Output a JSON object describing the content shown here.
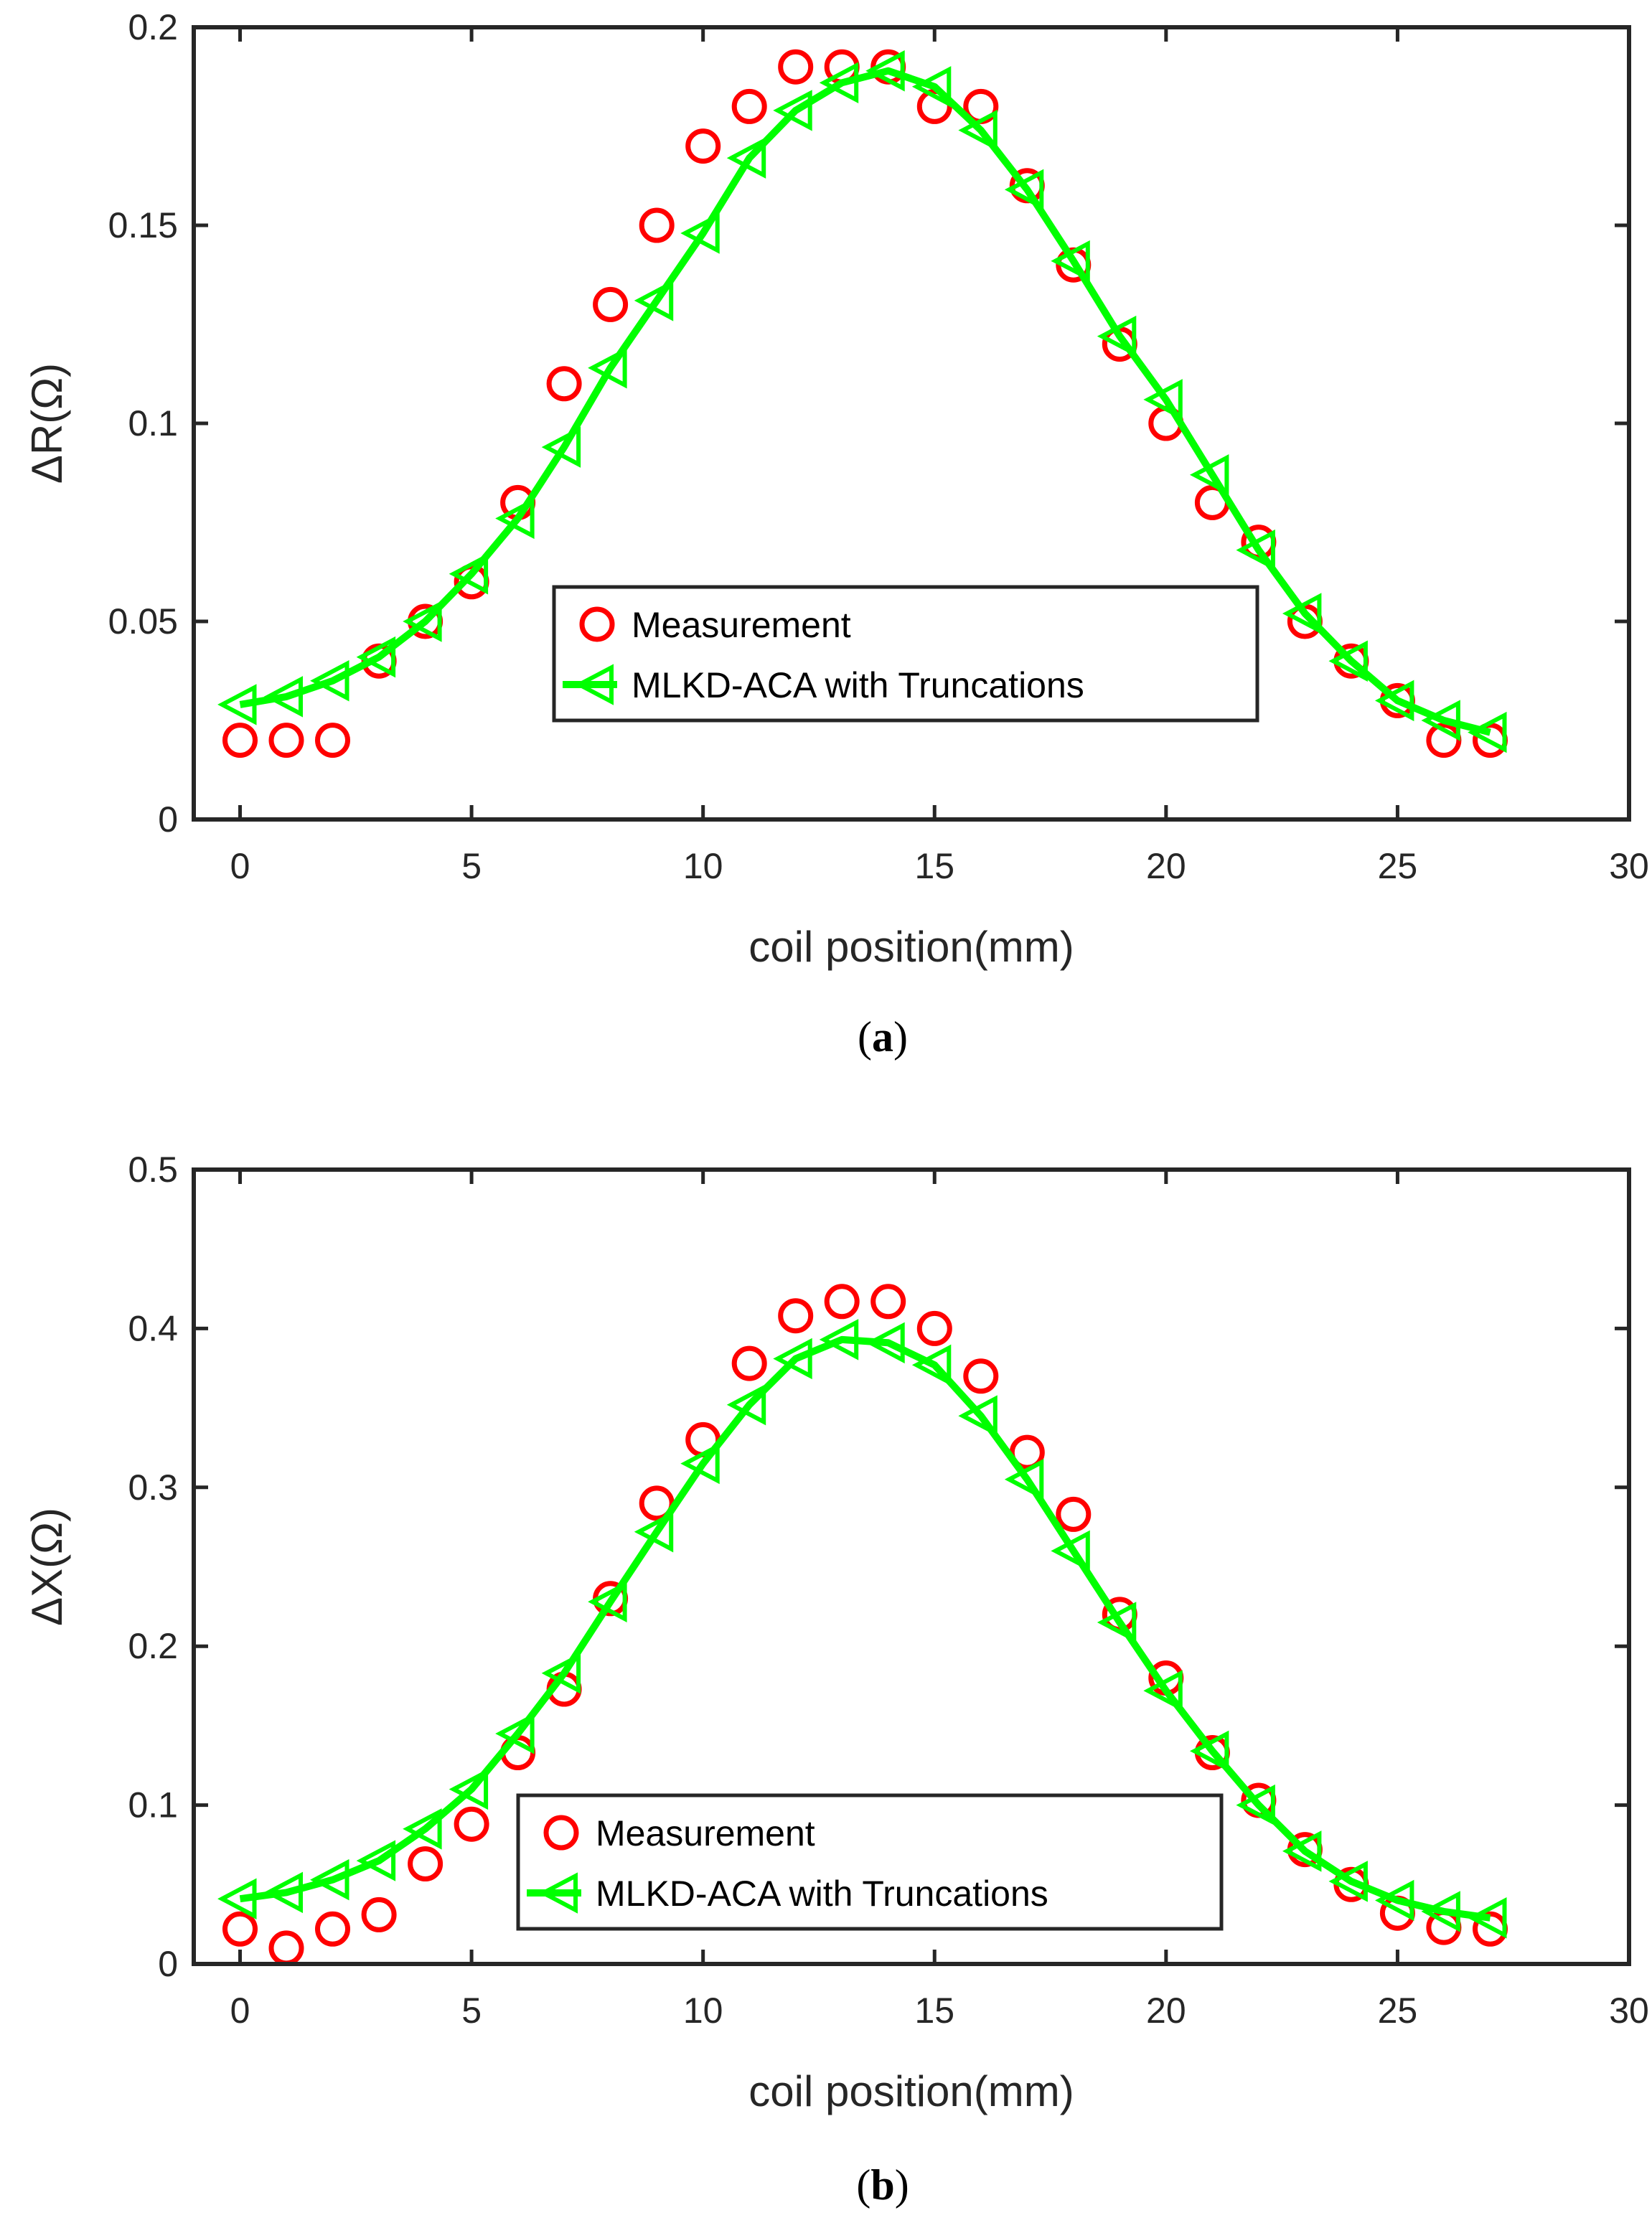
{
  "chart_data": [
    {
      "type": "line",
      "panel": "(a)",
      "panel_letter": "a",
      "xlabel": "coil position(mm)",
      "ylabel": "ΔR(Ω)",
      "xlim": [
        -1,
        30
      ],
      "ylim": [
        0,
        0.2
      ],
      "xticks": [
        0,
        5,
        10,
        15,
        20,
        25,
        30
      ],
      "xtick_labels": [
        "0",
        "5",
        "10",
        "15",
        "20",
        "25",
        "30"
      ],
      "yticks": [
        0,
        0.05,
        0.1,
        0.15,
        0.2
      ],
      "ytick_labels": [
        "0",
        "0.05",
        "0.1",
        "0.15",
        "0.2"
      ],
      "legend_position": "lower-center",
      "series": [
        {
          "name": "Measurement",
          "style": "marker-circle",
          "color": "#ff0000",
          "x": [
            0,
            1,
            2,
            3,
            4,
            5,
            6,
            7,
            8,
            9,
            10,
            11,
            12,
            13,
            14,
            15,
            16,
            17,
            18,
            19,
            20,
            21,
            22,
            23,
            24,
            25,
            26,
            27
          ],
          "values": [
            0.02,
            0.02,
            0.02,
            0.04,
            0.05,
            0.06,
            0.08,
            0.11,
            0.13,
            0.15,
            0.17,
            0.18,
            0.19,
            0.19,
            0.19,
            0.18,
            0.18,
            0.16,
            0.14,
            0.12,
            0.1,
            0.08,
            0.07,
            0.05,
            0.04,
            0.03,
            0.02,
            0.02
          ]
        },
        {
          "name": "MLKD-ACA with Truncations",
          "style": "line-triangle-left",
          "color": "#00ff00",
          "x": [
            0,
            1,
            2,
            3,
            4,
            5,
            6,
            7,
            8,
            9,
            10,
            11,
            12,
            13,
            14,
            15,
            16,
            17,
            18,
            19,
            20,
            21,
            22,
            23,
            24,
            25,
            26,
            27
          ],
          "values": [
            0.029,
            0.031,
            0.035,
            0.041,
            0.05,
            0.062,
            0.076,
            0.094,
            0.114,
            0.131,
            0.148,
            0.167,
            0.179,
            0.186,
            0.189,
            0.185,
            0.174,
            0.159,
            0.141,
            0.122,
            0.106,
            0.087,
            0.068,
            0.052,
            0.04,
            0.03,
            0.025,
            0.022
          ]
        }
      ]
    },
    {
      "type": "line",
      "panel": "(b)",
      "panel_letter": "b",
      "xlabel": "coil position(mm)",
      "ylabel": "ΔX(Ω)",
      "xlim": [
        -1,
        30
      ],
      "ylim": [
        0,
        0.5
      ],
      "xticks": [
        0,
        5,
        10,
        15,
        20,
        25,
        30
      ],
      "xtick_labels": [
        "0",
        "5",
        "10",
        "15",
        "20",
        "25",
        "30"
      ],
      "yticks": [
        0,
        0.1,
        0.2,
        0.3,
        0.4,
        0.5
      ],
      "ytick_labels": [
        "0",
        "0.1",
        "0.2",
        "0.3",
        "0.4",
        "0.5"
      ],
      "legend_position": "lower-center",
      "series": [
        {
          "name": "Measurement",
          "style": "marker-circle",
          "color": "#ff0000",
          "x": [
            0,
            1,
            2,
            3,
            4,
            5,
            6,
            7,
            8,
            9,
            10,
            11,
            12,
            13,
            14,
            15,
            16,
            17,
            18,
            19,
            20,
            21,
            22,
            23,
            24,
            25,
            26,
            27
          ],
          "values": [
            0.022,
            0.01,
            0.022,
            0.031,
            0.063,
            0.088,
            0.133,
            0.173,
            0.23,
            0.29,
            0.33,
            0.378,
            0.408,
            0.417,
            0.417,
            0.4,
            0.37,
            0.322,
            0.283,
            0.22,
            0.18,
            0.133,
            0.103,
            0.072,
            0.05,
            0.032,
            0.023,
            0.022
          ]
        },
        {
          "name": "MLKD-ACA with Truncations",
          "style": "line-triangle-left",
          "color": "#00ff00",
          "x": [
            0,
            1,
            2,
            3,
            4,
            5,
            6,
            7,
            8,
            9,
            10,
            11,
            12,
            13,
            14,
            15,
            16,
            17,
            18,
            19,
            20,
            21,
            22,
            23,
            24,
            25,
            26,
            27
          ],
          "values": [
            0.041,
            0.045,
            0.053,
            0.065,
            0.085,
            0.11,
            0.145,
            0.183,
            0.228,
            0.272,
            0.315,
            0.352,
            0.381,
            0.393,
            0.391,
            0.377,
            0.345,
            0.305,
            0.26,
            0.215,
            0.172,
            0.134,
            0.1,
            0.071,
            0.052,
            0.04,
            0.033,
            0.029
          ]
        }
      ]
    }
  ]
}
